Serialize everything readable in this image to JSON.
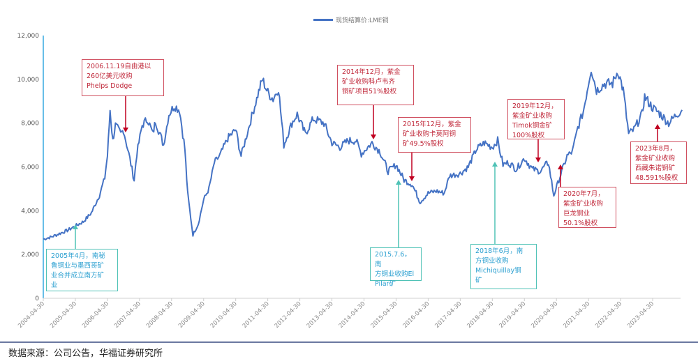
{
  "chart_data": {
    "type": "line",
    "title": "",
    "xlabel": "",
    "ylabel": "",
    "ylim": [
      0,
      12000
    ],
    "yticks": [
      "0",
      "2,000",
      "4,000",
      "6,000",
      "8,000",
      "10,000",
      "12,000"
    ],
    "xticks": [
      "2004-04-30",
      "2005-04-30",
      "2006-04-30",
      "2007-04-30",
      "2008-04-30",
      "2009-04-30",
      "2010-04-30",
      "2011-04-30",
      "2012-04-30",
      "2013-04-30",
      "2014-04-30",
      "2015-04-30",
      "2016-04-30",
      "2017-04-30",
      "2018-04-30",
      "2019-04-30",
      "2020-04-30",
      "2021-04-30",
      "2022-04-30",
      "2023-04-30"
    ],
    "legend_position": "top-center",
    "grid": false,
    "series": [
      {
        "name": "现货结算价:LME铜",
        "color": "#4472c4",
        "points": [
          [
            "2004-04",
            2700
          ],
          [
            "2004-07",
            2800
          ],
          [
            "2004-10",
            2950
          ],
          [
            "2005-01",
            3100
          ],
          [
            "2005-04",
            3300
          ],
          [
            "2005-07",
            3500
          ],
          [
            "2005-10",
            3900
          ],
          [
            "2006-01",
            4700
          ],
          [
            "2006-03",
            5500
          ],
          [
            "2006-04",
            6500
          ],
          [
            "2006-05",
            8600
          ],
          [
            "2006-06",
            7200
          ],
          [
            "2006-07",
            7900
          ],
          [
            "2006-09",
            7500
          ],
          [
            "2006-10",
            7700
          ],
          [
            "2006-12",
            6600
          ],
          [
            "2007-02",
            5400
          ],
          [
            "2007-03",
            6600
          ],
          [
            "2007-05",
            7900
          ],
          [
            "2007-07",
            8200
          ],
          [
            "2007-09",
            7500
          ],
          [
            "2007-10",
            8100
          ],
          [
            "2008-01",
            7000
          ],
          [
            "2008-03",
            8400
          ],
          [
            "2008-05",
            8800
          ],
          [
            "2008-07",
            8600
          ],
          [
            "2008-09",
            6800
          ],
          [
            "2008-10",
            4800
          ],
          [
            "2008-12",
            2900
          ],
          [
            "2009-02",
            3400
          ],
          [
            "2009-04",
            4500
          ],
          [
            "2009-06",
            5000
          ],
          [
            "2009-08",
            6200
          ],
          [
            "2009-10",
            6500
          ],
          [
            "2010-01",
            7300
          ],
          [
            "2010-04",
            7700
          ],
          [
            "2010-06",
            6500
          ],
          [
            "2010-08",
            7400
          ],
          [
            "2010-10",
            8300
          ],
          [
            "2011-01",
            9600
          ],
          [
            "2011-02",
            10000
          ],
          [
            "2011-04",
            9400
          ],
          [
            "2011-06",
            9100
          ],
          [
            "2011-08",
            9600
          ],
          [
            "2011-10",
            7000
          ],
          [
            "2012-01",
            8000
          ],
          [
            "2012-03",
            8400
          ],
          [
            "2012-06",
            7500
          ],
          [
            "2012-09",
            8200
          ],
          [
            "2013-01",
            8000
          ],
          [
            "2013-04",
            7100
          ],
          [
            "2013-07",
            6900
          ],
          [
            "2013-10",
            7200
          ],
          [
            "2014-01",
            7200
          ],
          [
            "2014-03",
            6600
          ],
          [
            "2014-07",
            7100
          ],
          [
            "2014-10",
            6700
          ],
          [
            "2015-01",
            5800
          ],
          [
            "2015-04",
            6100
          ],
          [
            "2015-07",
            5400
          ],
          [
            "2015-10",
            5200
          ],
          [
            "2016-01",
            4400
          ],
          [
            "2016-04",
            4800
          ],
          [
            "2016-07",
            4900
          ],
          [
            "2016-10",
            4800
          ],
          [
            "2016-12",
            5600
          ],
          [
            "2017-04",
            5700
          ],
          [
            "2017-07",
            6000
          ],
          [
            "2017-10",
            6800
          ],
          [
            "2018-01",
            7100
          ],
          [
            "2018-04",
            6900
          ],
          [
            "2018-06",
            7200
          ],
          [
            "2018-08",
            6100
          ],
          [
            "2018-10",
            6200
          ],
          [
            "2019-01",
            5900
          ],
          [
            "2019-04",
            6400
          ],
          [
            "2019-07",
            5900
          ],
          [
            "2019-10",
            5800
          ],
          [
            "2019-12",
            6100
          ],
          [
            "2020-01",
            6200
          ],
          [
            "2020-03",
            4700
          ],
          [
            "2020-06",
            5800
          ],
          [
            "2020-08",
            6500
          ],
          [
            "2020-10",
            6700
          ],
          [
            "2020-12",
            7800
          ],
          [
            "2021-02",
            8500
          ],
          [
            "2021-05",
            10500
          ],
          [
            "2021-07",
            9500
          ],
          [
            "2021-10",
            9800
          ],
          [
            "2022-01",
            9800
          ],
          [
            "2022-03",
            10400
          ],
          [
            "2022-05",
            9500
          ],
          [
            "2022-07",
            7500
          ],
          [
            "2022-09",
            7700
          ],
          [
            "2022-12",
            8400
          ],
          [
            "2023-01",
            9200
          ],
          [
            "2023-04",
            8700
          ],
          [
            "2023-07",
            8400
          ],
          [
            "2023-10",
            8000
          ],
          [
            "2024-01",
            8400
          ],
          [
            "2024-03",
            8600
          ]
        ]
      }
    ],
    "annotations": [
      {
        "text": "2006.11.19自由港以\n260亿美元收购\nPhelps Dodge",
        "color": "#c0283a"
      },
      {
        "text": "2014年12月，紫金\n矿业收购科卢韦齐\n铜矿项目51%股权",
        "color": "#c0283a"
      },
      {
        "text": "2015年12月，紫金\n矿业收购卡莫阿铜\n矿49.5%股权",
        "color": "#c0283a"
      },
      {
        "text": "2019年12月，\n紫金矿业收购\nTimok铜金矿\n100%股权",
        "color": "#c0283a"
      },
      {
        "text": "2020年7月，\n紫金矿业收购\n巨龙铜业\n50.1%股权",
        "color": "#c0283a"
      },
      {
        "text": "2023年8月，\n紫金矿业收购\n西藏朱诺铜矿\n48.591%股权",
        "color": "#c0283a"
      },
      {
        "text": "2005年4月，南秘\n鲁铜业与墨西哥矿\n业合并成立南方矿\n业",
        "color": "#2a9fd0"
      },
      {
        "text": "2015.7.6，南\n方铜业收购El\nPilar矿",
        "color": "#2a9fd0"
      },
      {
        "text": "2018年6月，南\n方铜业收购\nMichiquillay铜\n矿",
        "color": "#2a9fd0"
      }
    ]
  },
  "legend": {
    "label": "现货结算价:LME铜"
  },
  "source": "数据来源：公司公告，华福证券研究所"
}
